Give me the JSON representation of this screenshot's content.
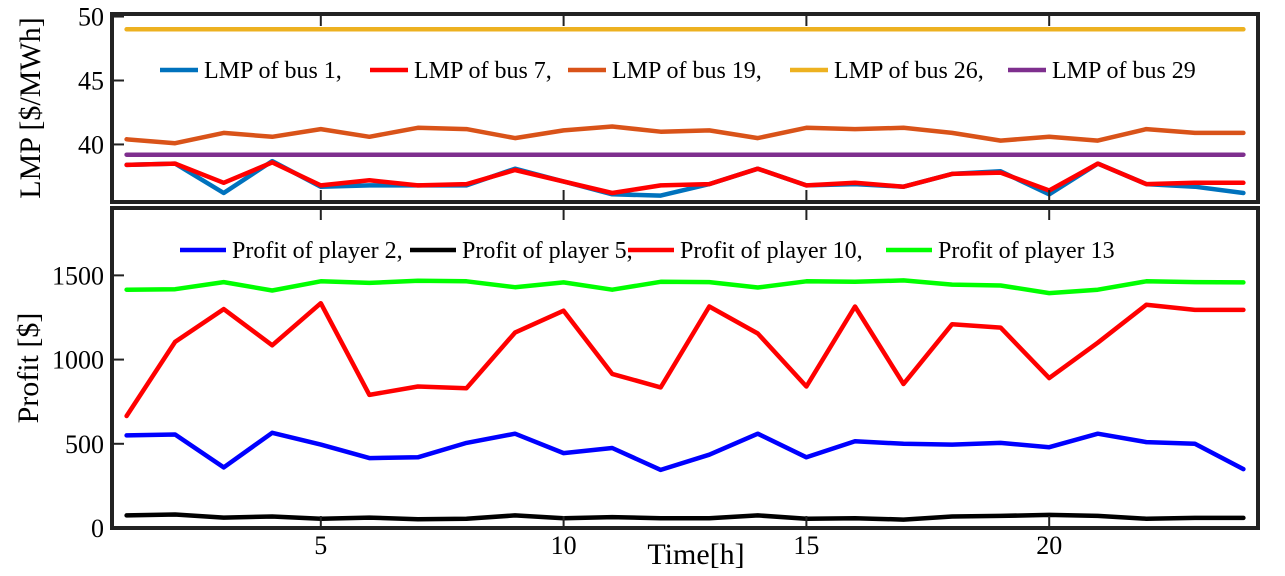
{
  "chart_data": [
    {
      "type": "line",
      "title": "",
      "xlabel": "",
      "ylabel": "LMP [$/MWh]",
      "xlim": [
        0.7,
        24.3
      ],
      "ylim": [
        35.5,
        50.2
      ],
      "xticks": [
        5,
        10,
        15,
        20
      ],
      "xtick_labels": [
        "",
        "",
        "",
        ""
      ],
      "yticks": [
        40,
        45,
        50
      ],
      "ytick_labels": [
        "40",
        "45",
        "50"
      ],
      "grid": false,
      "legend_position": "top",
      "x": [
        1,
        2,
        3,
        4,
        5,
        6,
        7,
        8,
        9,
        10,
        11,
        12,
        13,
        14,
        15,
        16,
        17,
        18,
        19,
        20,
        21,
        22,
        23,
        24
      ],
      "series": [
        {
          "name": "LMP of bus 1,",
          "color": "#0072BD",
          "legend_label": "LMP of bus 1,",
          "values": [
            38.4,
            38.5,
            36.2,
            38.7,
            36.7,
            36.8,
            36.8,
            36.8,
            38.1,
            37.1,
            36.1,
            36.0,
            36.9,
            38.1,
            36.8,
            36.9,
            36.7,
            37.7,
            37.9,
            36.1,
            38.5,
            36.9,
            36.7,
            36.2
          ]
        },
        {
          "name": "LMP of bus 7,",
          "color": "#FF0000",
          "legend_label": "LMP of bus 7,",
          "values": [
            38.4,
            38.5,
            37.0,
            38.6,
            36.8,
            37.2,
            36.8,
            36.9,
            38.0,
            37.1,
            36.2,
            36.8,
            36.9,
            38.1,
            36.8,
            37.0,
            36.7,
            37.7,
            37.8,
            36.4,
            38.5,
            36.9,
            37.0,
            37.0
          ]
        },
        {
          "name": "LMP of bus 19,",
          "color": "#D95319",
          "legend_label": "LMP of bus 19,",
          "values": [
            40.4,
            40.1,
            40.9,
            40.6,
            41.2,
            40.6,
            41.3,
            41.2,
            40.5,
            41.1,
            41.4,
            41.0,
            41.1,
            40.5,
            41.3,
            41.2,
            41.3,
            40.9,
            40.3,
            40.6,
            40.3,
            41.2,
            40.9,
            40.9
          ]
        },
        {
          "name": "LMP of bus 26,",
          "color": "#EDB120",
          "legend_label": "LMP of bus 26,",
          "values": [
            49.0,
            49.0,
            49.0,
            49.0,
            49.0,
            49.0,
            49.0,
            49.0,
            49.0,
            49.0,
            49.0,
            49.0,
            49.0,
            49.0,
            49.0,
            49.0,
            49.0,
            49.0,
            49.0,
            49.0,
            49.0,
            49.0,
            49.0,
            49.0
          ]
        },
        {
          "name": "LMP of bus 29",
          "color": "#7E2F8E",
          "legend_label": "LMP of bus 29",
          "values": [
            39.2,
            39.2,
            39.2,
            39.2,
            39.2,
            39.2,
            39.2,
            39.2,
            39.2,
            39.2,
            39.2,
            39.2,
            39.2,
            39.2,
            39.2,
            39.2,
            39.2,
            39.2,
            39.2,
            39.2,
            39.2,
            39.2,
            39.2,
            39.2
          ]
        }
      ]
    },
    {
      "type": "line",
      "title": "",
      "xlabel": "Time[h]",
      "ylabel": "Profit [$]",
      "xlim": [
        0.7,
        24.3
      ],
      "ylim": [
        0,
        1900
      ],
      "xticks": [
        5,
        10,
        15,
        20
      ],
      "xtick_labels": [
        "5",
        "10",
        "15",
        "20"
      ],
      "yticks": [
        0,
        500,
        1000,
        1500
      ],
      "ytick_labels": [
        "0",
        "500",
        "1000",
        "1500"
      ],
      "grid": false,
      "legend_position": "top",
      "x": [
        1,
        2,
        3,
        4,
        5,
        6,
        7,
        8,
        9,
        10,
        11,
        12,
        13,
        14,
        15,
        16,
        17,
        18,
        19,
        20,
        21,
        22,
        23,
        24
      ],
      "series": [
        {
          "name": "Profit of player 2,",
          "color": "#0000FF",
          "legend_label": "Profit of player 2,",
          "values": [
            550,
            555,
            360,
            565,
            495,
            415,
            420,
            505,
            560,
            445,
            475,
            345,
            435,
            560,
            420,
            515,
            500,
            495,
            505,
            480,
            560,
            510,
            500,
            350
          ]
        },
        {
          "name": "Profit of player 5,",
          "color": "#000000",
          "legend_label": "Profit of player 5,",
          "values": [
            75,
            80,
            62,
            68,
            55,
            62,
            52,
            55,
            75,
            58,
            65,
            58,
            58,
            75,
            55,
            58,
            50,
            68,
            72,
            78,
            72,
            55,
            60,
            60
          ]
        },
        {
          "name": "Profit of player 10,",
          "color": "#FF0000",
          "legend_label": "Profit of player 10,",
          "values": [
            665,
            1105,
            1300,
            1085,
            1335,
            790,
            840,
            830,
            1160,
            1290,
            915,
            835,
            1315,
            1155,
            840,
            1315,
            855,
            1210,
            1190,
            890,
            1100,
            1325,
            1295,
            1295
          ]
        },
        {
          "name": "Profit of player 13",
          "color": "#00FF00",
          "legend_label": "Profit of player 13",
          "values": [
            1415,
            1418,
            1460,
            1410,
            1465,
            1455,
            1468,
            1465,
            1430,
            1458,
            1415,
            1462,
            1460,
            1428,
            1465,
            1462,
            1470,
            1445,
            1440,
            1395,
            1415,
            1465,
            1460,
            1458
          ]
        }
      ]
    }
  ]
}
